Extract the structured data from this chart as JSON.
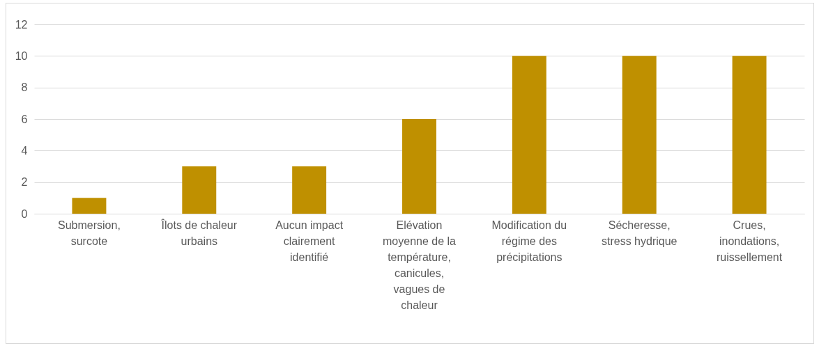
{
  "chart_data": {
    "type": "bar",
    "categories": [
      "Submersion, surcote",
      "Îlots de chaleur urbains",
      "Aucun impact clairement identifié",
      "Elévation moyenne de la température, canicules, vagues de chaleur",
      "Modification du régime des précipitations",
      "Sécheresse, stress hydrique",
      "Crues, inondations, ruissellement"
    ],
    "values": [
      1,
      3,
      3,
      6,
      10,
      10,
      10
    ],
    "color": "#bf9000",
    "ylim": [
      0,
      12
    ],
    "yticks": [
      0,
      2,
      4,
      6,
      8,
      10,
      12
    ],
    "grid": "y"
  }
}
